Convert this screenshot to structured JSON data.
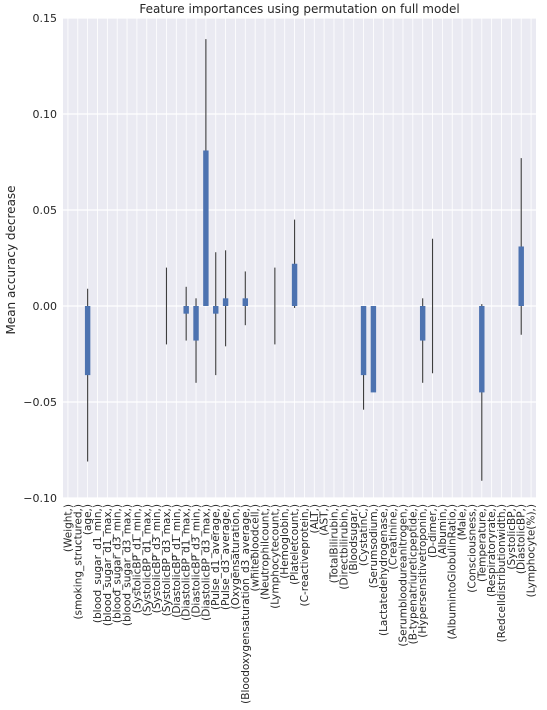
{
  "chart_data": {
    "type": "bar",
    "title": "Feature importances using permutation on full model",
    "xlabel": "",
    "ylabel": "Mean accuracy decrease",
    "ylim": [
      -0.1,
      0.15
    ],
    "yticks": [
      -0.1,
      -0.05,
      0.0,
      0.05,
      0.1,
      0.15
    ],
    "ytick_labels": [
      "−0.10",
      "−0.05",
      "0.00",
      "0.05",
      "0.10",
      "0.15"
    ],
    "grid": true,
    "categories": [
      "(Weight,)",
      "(smoking_structured,)",
      "(age,)",
      "(blood_sugar_d1_min,)",
      "(blood_sugar_d1_max,)",
      "(blood_sugar_d3_min,)",
      "(blood_sugar_d3_max,)",
      "(SystolicBP_d1_min,)",
      "(SystolicBP_d1_max,)",
      "(SystolicBP_d3_min,)",
      "(SystolicBP_d3_max,)",
      "(DiastolicBP_d1_min,)",
      "(DiastolicBP_d1_max,)",
      "(DiastolicBP_d3_min,)",
      "(DiastolicBP_d3_max,)",
      "(Pulse_d1_average,)",
      "(Pulse_d3_average,)",
      "(Oxygensaturation,)",
      "(Bloodoxygensaturation_d3_average,)",
      "(whitebloodcell,)",
      "(Neutrophilcount,)",
      "(Lymphocytecount,)",
      "(Hemoglobin,)",
      "(Plateletcount,)",
      "(C-reactiveprotein,)",
      "(ALT,)",
      "(AST,)",
      "(TotalBilirubin,)",
      "(Directbilirubin,)",
      "(Bloodsugar,)",
      "(CystatinC,)",
      "(Serumsodium,)",
      "(Lactatedehydrogenase,)",
      "(Creatinine,)",
      "(Serumbloodureanitrogen,)",
      "(B-typenatriureticpeptide,)",
      "(Hypersensitivetroponin,)",
      "(D-dimer,)",
      "(Albumin,)",
      "(AlbumintoGlobulinRatio,)",
      "(Male,)",
      "(Consciousness,)",
      "(Temperature,)",
      "(Respiratoryrate,)",
      "(Redcelldistributionwidth,)",
      "(SystolicBP,)",
      "(DiastolicBP,)",
      "(Lymphocyte(%),)"
    ],
    "series": [
      {
        "values": [
          0,
          0,
          -0.036,
          0,
          0,
          0,
          0,
          0,
          0,
          0,
          0,
          0,
          -0.004,
          -0.018,
          0.081,
          -0.004,
          0.004,
          0,
          0.004,
          0,
          0,
          0,
          0,
          0.022,
          0,
          0,
          0,
          0,
          0,
          0,
          -0.036,
          -0.045,
          0,
          0,
          0,
          0,
          -0.018,
          0,
          0,
          0,
          0,
          0,
          -0.045,
          0,
          0,
          0,
          0.031,
          0
        ],
        "errors": [
          0,
          0,
          0.045,
          0,
          0,
          0,
          0,
          0,
          0,
          0,
          0.02,
          0,
          0.014,
          0.022,
          0.058,
          0.032,
          0.025,
          0,
          0.014,
          0,
          0,
          0.02,
          0,
          0.023,
          0,
          0,
          0,
          0,
          0,
          0,
          0.018,
          0,
          0,
          0,
          0,
          0,
          0.022,
          0.035,
          0,
          0,
          0,
          0,
          0.046,
          0,
          0,
          0,
          0.046,
          0
        ],
        "color": "#4c72b0"
      }
    ],
    "colors": {
      "plot_background": "#eaeaf2",
      "grid": "#ffffff",
      "bar": "#4c72b0",
      "errorbar": "#3d3d3d",
      "text": "#262626"
    }
  }
}
